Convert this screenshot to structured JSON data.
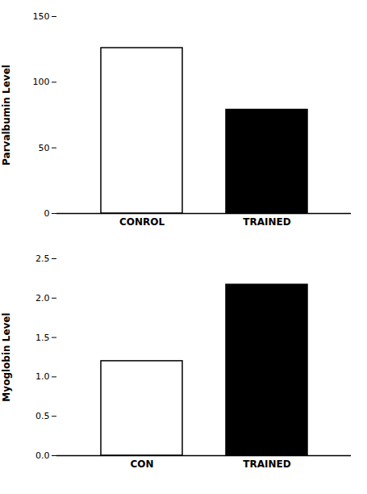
{
  "chart_data": [
    {
      "type": "bar",
      "categories": [
        "CONROL",
        "TRAINED"
      ],
      "values": [
        126,
        79
      ],
      "colors": [
        "#ffffff",
        "#000000"
      ],
      "ylabel": "Parvalbumin Level",
      "ylim": [
        0,
        150
      ],
      "yticks": [
        0,
        50,
        100,
        150
      ]
    },
    {
      "type": "bar",
      "categories": [
        "CON",
        "TRAINED"
      ],
      "values": [
        1.2,
        2.17
      ],
      "colors": [
        "#ffffff",
        "#000000"
      ],
      "ylabel": "Myoglobin Level",
      "ylim": [
        0,
        2.5
      ],
      "yticks": [
        {
          "value": 0,
          "label": "0.0"
        },
        0.5,
        {
          "value": 1,
          "label": "1.0"
        },
        1.5,
        {
          "value": 2,
          "label": "2.0"
        },
        2.5
      ]
    }
  ]
}
